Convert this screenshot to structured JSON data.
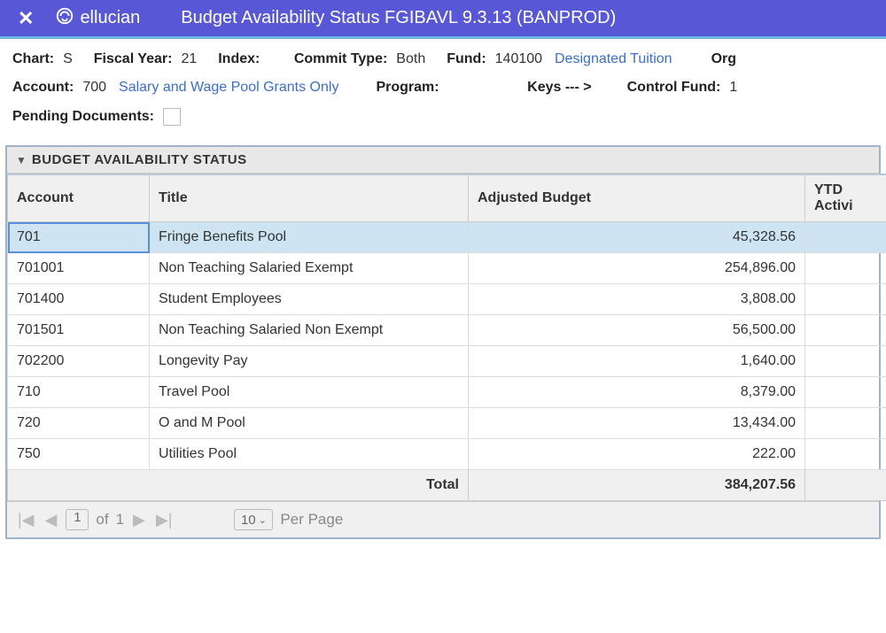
{
  "header": {
    "close_glyph": "✕",
    "brand": "ellucian",
    "title": "Budget Availability Status FGIBAVL 9.3.13 (BANPROD)"
  },
  "params": {
    "chart_label": "Chart:",
    "chart_value": "S",
    "fy_label": "Fiscal Year:",
    "fy_value": "21",
    "index_label": "Index:",
    "commit_label": "Commit Type:",
    "commit_value": "Both",
    "fund_label": "Fund:",
    "fund_value": "140100",
    "fund_desc": "Designated Tuition",
    "orgn_label": "Org",
    "account_label": "Account:",
    "account_value": "700",
    "account_desc": "Salary and Wage Pool Grants Only",
    "program_label": "Program:",
    "keys_label": "Keys --- >",
    "control_fund_label": "Control Fund:",
    "control_fund_value": "1",
    "pending_label": "Pending Documents:"
  },
  "section": {
    "title": "BUDGET AVAILABILITY STATUS"
  },
  "table": {
    "columns": {
      "account": "Account",
      "title": "Title",
      "adjusted_budget": "Adjusted Budget",
      "ytd": "YTD Activi"
    },
    "rows": [
      {
        "account": "701",
        "title": "Fringe Benefits Pool",
        "adjusted_budget": "45,328.56"
      },
      {
        "account": "701001",
        "title": "Non Teaching Salaried Exempt",
        "adjusted_budget": "254,896.00"
      },
      {
        "account": "701400",
        "title": "Student Employees",
        "adjusted_budget": "3,808.00"
      },
      {
        "account": "701501",
        "title": "Non Teaching Salaried Non Exempt",
        "adjusted_budget": "56,500.00"
      },
      {
        "account": "702200",
        "title": "Longevity Pay",
        "adjusted_budget": "1,640.00"
      },
      {
        "account": "710",
        "title": "Travel Pool",
        "adjusted_budget": "8,379.00"
      },
      {
        "account": "720",
        "title": "O and M Pool",
        "adjusted_budget": "13,434.00"
      },
      {
        "account": "750",
        "title": "Utilities Pool",
        "adjusted_budget": "222.00"
      }
    ],
    "total_label": "Total",
    "total_budget": "384,207.56"
  },
  "pager": {
    "page": "1",
    "of_label": "of",
    "total_pages": "1",
    "per_page": "10",
    "per_page_label": "Per Page"
  }
}
